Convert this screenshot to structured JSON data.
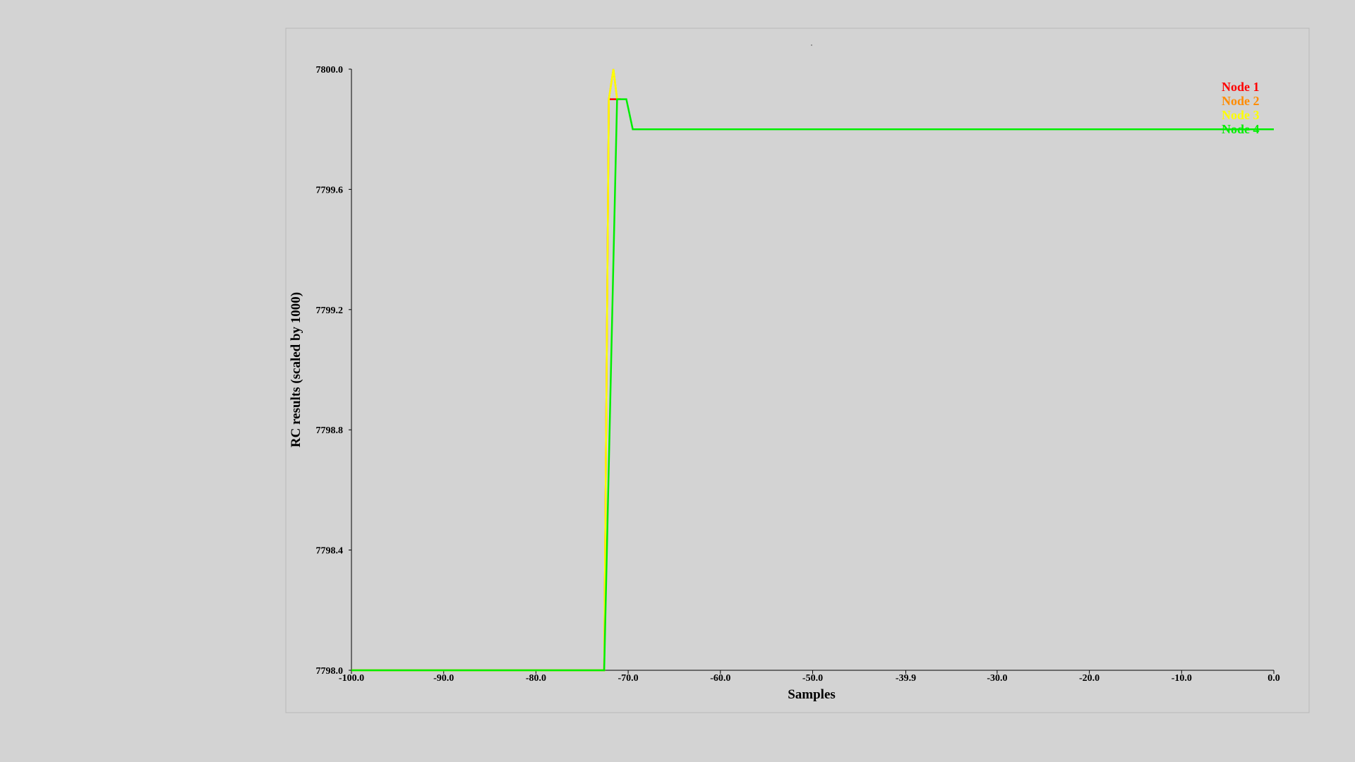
{
  "chart_data": {
    "type": "line",
    "title": "",
    "xlabel": "Samples",
    "ylabel": "RC results (scaled by 1000)",
    "xlim": [
      -100.0,
      0.0
    ],
    "ylim": [
      7798.0,
      7800.0
    ],
    "x_ticks": [
      -100.0,
      -90.0,
      -80.0,
      -70.0,
      -60.0,
      -50.0,
      -39.9,
      -30.0,
      -20.0,
      -10.0,
      0.0
    ],
    "x_tick_labels": [
      "-100.0",
      "-90.0",
      "-80.0",
      "-70.0",
      "-60.0",
      "-50.0",
      "-39.9",
      "-30.0",
      "-20.0",
      "-10.0",
      "0.0"
    ],
    "y_ticks": [
      7798.0,
      7798.4,
      7798.8,
      7799.2,
      7799.6,
      7800.0
    ],
    "y_tick_labels": [
      "7798.0",
      "7798.4",
      "7798.8",
      "7799.2",
      "7799.6",
      "7800.0"
    ],
    "legend_position": "top-right",
    "series": [
      {
        "name": "Node 1",
        "color": "#ff0000",
        "x": [
          -100.0,
          -72.6,
          -72.1,
          -71.8,
          -71.2,
          -70.8
        ],
        "y": [
          7798.0,
          7798.0,
          7799.9,
          7799.9,
          7799.9,
          7799.9
        ]
      },
      {
        "name": "Node 2",
        "color": "#ff8c00",
        "x": [
          -100.0,
          -72.6,
          -72.1,
          -71.6,
          -71.2,
          -70.8
        ],
        "y": [
          7798.0,
          7798.0,
          7799.9,
          7800.0,
          7799.9,
          7799.9
        ]
      },
      {
        "name": "Node 3",
        "color": "#ffff00",
        "x": [
          -100.0,
          -72.6,
          -72.1,
          -71.6,
          -71.2,
          -70.8
        ],
        "y": [
          7798.0,
          7798.0,
          7799.9,
          7800.0,
          7799.9,
          7799.9
        ]
      },
      {
        "name": "Node 4",
        "color": "#00ee00",
        "x": [
          -100.0,
          -72.6,
          -71.2,
          -70.2,
          -69.5,
          0.0
        ],
        "y": [
          7798.0,
          7798.0,
          7799.9,
          7799.9,
          7799.8,
          7799.8
        ]
      }
    ]
  }
}
